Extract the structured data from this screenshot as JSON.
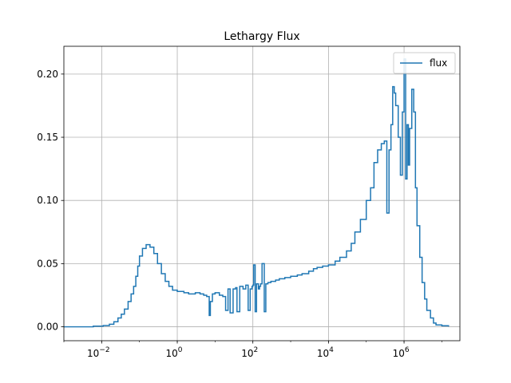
{
  "chart_data": {
    "type": "line",
    "title": "Lethargy Flux",
    "xlabel": "",
    "ylabel": "",
    "xscale": "log",
    "xlim": [
      0.001,
      30000000
    ],
    "ylim": [
      -0.011,
      0.222
    ],
    "grid": true,
    "legend_position": "upper right",
    "colors": {
      "series": "#1f77b4",
      "grid": "#b0b0b0",
      "axes": "#000000"
    },
    "x_ticks": [
      {
        "value": 0.01,
        "base": "10",
        "exp": "−2"
      },
      {
        "value": 1,
        "base": "10",
        "exp": "0"
      },
      {
        "value": 100,
        "base": "10",
        "exp": "2"
      },
      {
        "value": 10000,
        "base": "10",
        "exp": "4"
      },
      {
        "value": 1000000,
        "base": "10",
        "exp": "6"
      }
    ],
    "y_ticks": [
      {
        "value": 0.0,
        "label": "0.00"
      },
      {
        "value": 0.05,
        "label": "0.05"
      },
      {
        "value": 0.1,
        "label": "0.10"
      },
      {
        "value": 0.15,
        "label": "0.15"
      },
      {
        "value": 0.2,
        "label": "0.20"
      }
    ],
    "series": [
      {
        "name": "flux",
        "step": true,
        "x": [
          0.001,
          0.006,
          0.011,
          0.016,
          0.021,
          0.027,
          0.033,
          0.04,
          0.05,
          0.06,
          0.07,
          0.08,
          0.09,
          0.1,
          0.12,
          0.15,
          0.19,
          0.24,
          0.3,
          0.38,
          0.48,
          0.6,
          0.75,
          1.0,
          1.5,
          2.0,
          3.0,
          4.0,
          5.0,
          6.0,
          7.0,
          7.5,
          8.5,
          10,
          13,
          16,
          19,
          22,
          25,
          30,
          35,
          38,
          45,
          55,
          65,
          75,
          85,
          95,
          100,
          105,
          115,
          125,
          140,
          150,
          160,
          175,
          200,
          220,
          250,
          300,
          400,
          500,
          700,
          1000,
          1500,
          2000,
          3000,
          4000,
          5000,
          7000,
          10000,
          15000,
          20000,
          30000,
          40000,
          50000,
          70000,
          100000,
          130000,
          160000,
          200000,
          250000,
          300000,
          350000,
          400000,
          450000,
          500000,
          550000,
          600000,
          700000,
          800000,
          900000,
          1000000,
          1100000,
          1200000,
          1300000,
          1400000,
          1600000,
          1800000,
          2000000,
          2200000,
          2600000,
          3000000,
          3500000,
          4000000,
          5000000,
          6000000,
          7000000,
          10000000,
          15000000
        ],
        "y": [
          0.0,
          0.0005,
          0.001,
          0.002,
          0.004,
          0.007,
          0.01,
          0.014,
          0.02,
          0.026,
          0.032,
          0.04,
          0.048,
          0.056,
          0.062,
          0.065,
          0.063,
          0.058,
          0.05,
          0.042,
          0.036,
          0.032,
          0.029,
          0.028,
          0.027,
          0.026,
          0.027,
          0.026,
          0.025,
          0.024,
          0.009,
          0.02,
          0.026,
          0.027,
          0.025,
          0.024,
          0.013,
          0.03,
          0.011,
          0.03,
          0.031,
          0.012,
          0.032,
          0.03,
          0.033,
          0.013,
          0.03,
          0.032,
          0.033,
          0.049,
          0.012,
          0.034,
          0.03,
          0.032,
          0.034,
          0.05,
          0.012,
          0.034,
          0.035,
          0.036,
          0.037,
          0.038,
          0.039,
          0.04,
          0.041,
          0.042,
          0.044,
          0.046,
          0.047,
          0.048,
          0.049,
          0.052,
          0.055,
          0.06,
          0.066,
          0.075,
          0.085,
          0.1,
          0.11,
          0.13,
          0.14,
          0.145,
          0.147,
          0.09,
          0.14,
          0.16,
          0.19,
          0.185,
          0.175,
          0.15,
          0.12,
          0.17,
          0.212,
          0.117,
          0.16,
          0.128,
          0.157,
          0.188,
          0.17,
          0.11,
          0.08,
          0.055,
          0.035,
          0.022,
          0.013,
          0.007,
          0.003,
          0.0015,
          0.0008,
          0.0002
        ]
      }
    ]
  }
}
